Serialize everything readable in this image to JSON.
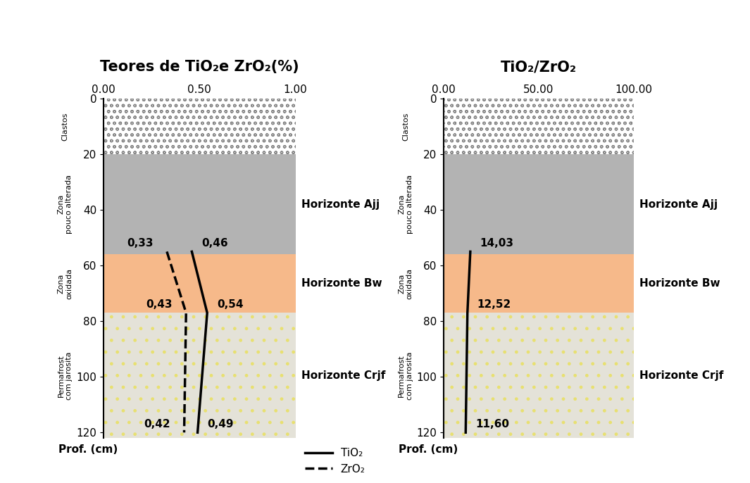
{
  "profile": {
    "depth_label": "Prof. (cm)",
    "layers": [
      {
        "zone": "Clastos",
        "horizon": null,
        "top": 0,
        "bottom": 20,
        "color": "#ffffff"
      },
      {
        "zone": "Zona\npouco alterada",
        "horizon": "Horizonte Ajj",
        "top": 20,
        "bottom": 56,
        "color": "#b3b3b3"
      },
      {
        "zone": "Zona\noxidada",
        "horizon": "Horizonte Bw",
        "top": 56,
        "bottom": 77,
        "color": "#f6b98a"
      },
      {
        "zone": "Permafrost\ncom jarosita",
        "horizon": "Horizonte Crjf",
        "top": 77,
        "bottom": 122,
        "color": "#e4e2d8"
      }
    ]
  },
  "chart_data": [
    {
      "type": "line",
      "title": "Teores de TiO₂e ZrO₂(%)",
      "y": [
        55,
        77,
        120
      ],
      "xlim": [
        0,
        1
      ],
      "xticks": [
        {
          "value": 0,
          "label": "0.00"
        },
        {
          "value": 0.5,
          "label": "0.50"
        },
        {
          "value": 1,
          "label": "1.00"
        }
      ],
      "ylim": [
        122,
        0
      ],
      "yticks": [
        0,
        20,
        40,
        60,
        80,
        100,
        120
      ],
      "legend": "upper left",
      "data_labels": true,
      "series": [
        {
          "name": "TiO₂",
          "color": "#000000",
          "line_style": "solid",
          "values": [
            0.46,
            0.54,
            0.49
          ],
          "value_labels": [
            "0,46",
            "0,54",
            "0,49"
          ]
        },
        {
          "name": "ZrO₂",
          "color": "#000000",
          "line_style": "dashed",
          "values": [
            0.33,
            0.43,
            0.42
          ],
          "value_labels": [
            "0,33",
            "0,43",
            "0,42"
          ]
        }
      ]
    },
    {
      "type": "line",
      "title": "TiO₂/ZrO₂",
      "y": [
        55,
        77,
        120
      ],
      "xlim": [
        0,
        100
      ],
      "xticks": [
        {
          "value": 0,
          "label": "0.00"
        },
        {
          "value": 50,
          "label": "50.00"
        },
        {
          "value": 100,
          "label": "100.00"
        }
      ],
      "ylim": [
        122,
        0
      ],
      "yticks": [
        0,
        20,
        40,
        60,
        80,
        100,
        120
      ],
      "data_labels": true,
      "series": [
        {
          "color": "#000000",
          "line_style": "solid",
          "values": [
            14.03,
            12.52,
            11.6
          ],
          "value_labels": [
            "14,03",
            "12,52",
            "11,60"
          ]
        }
      ]
    }
  ]
}
